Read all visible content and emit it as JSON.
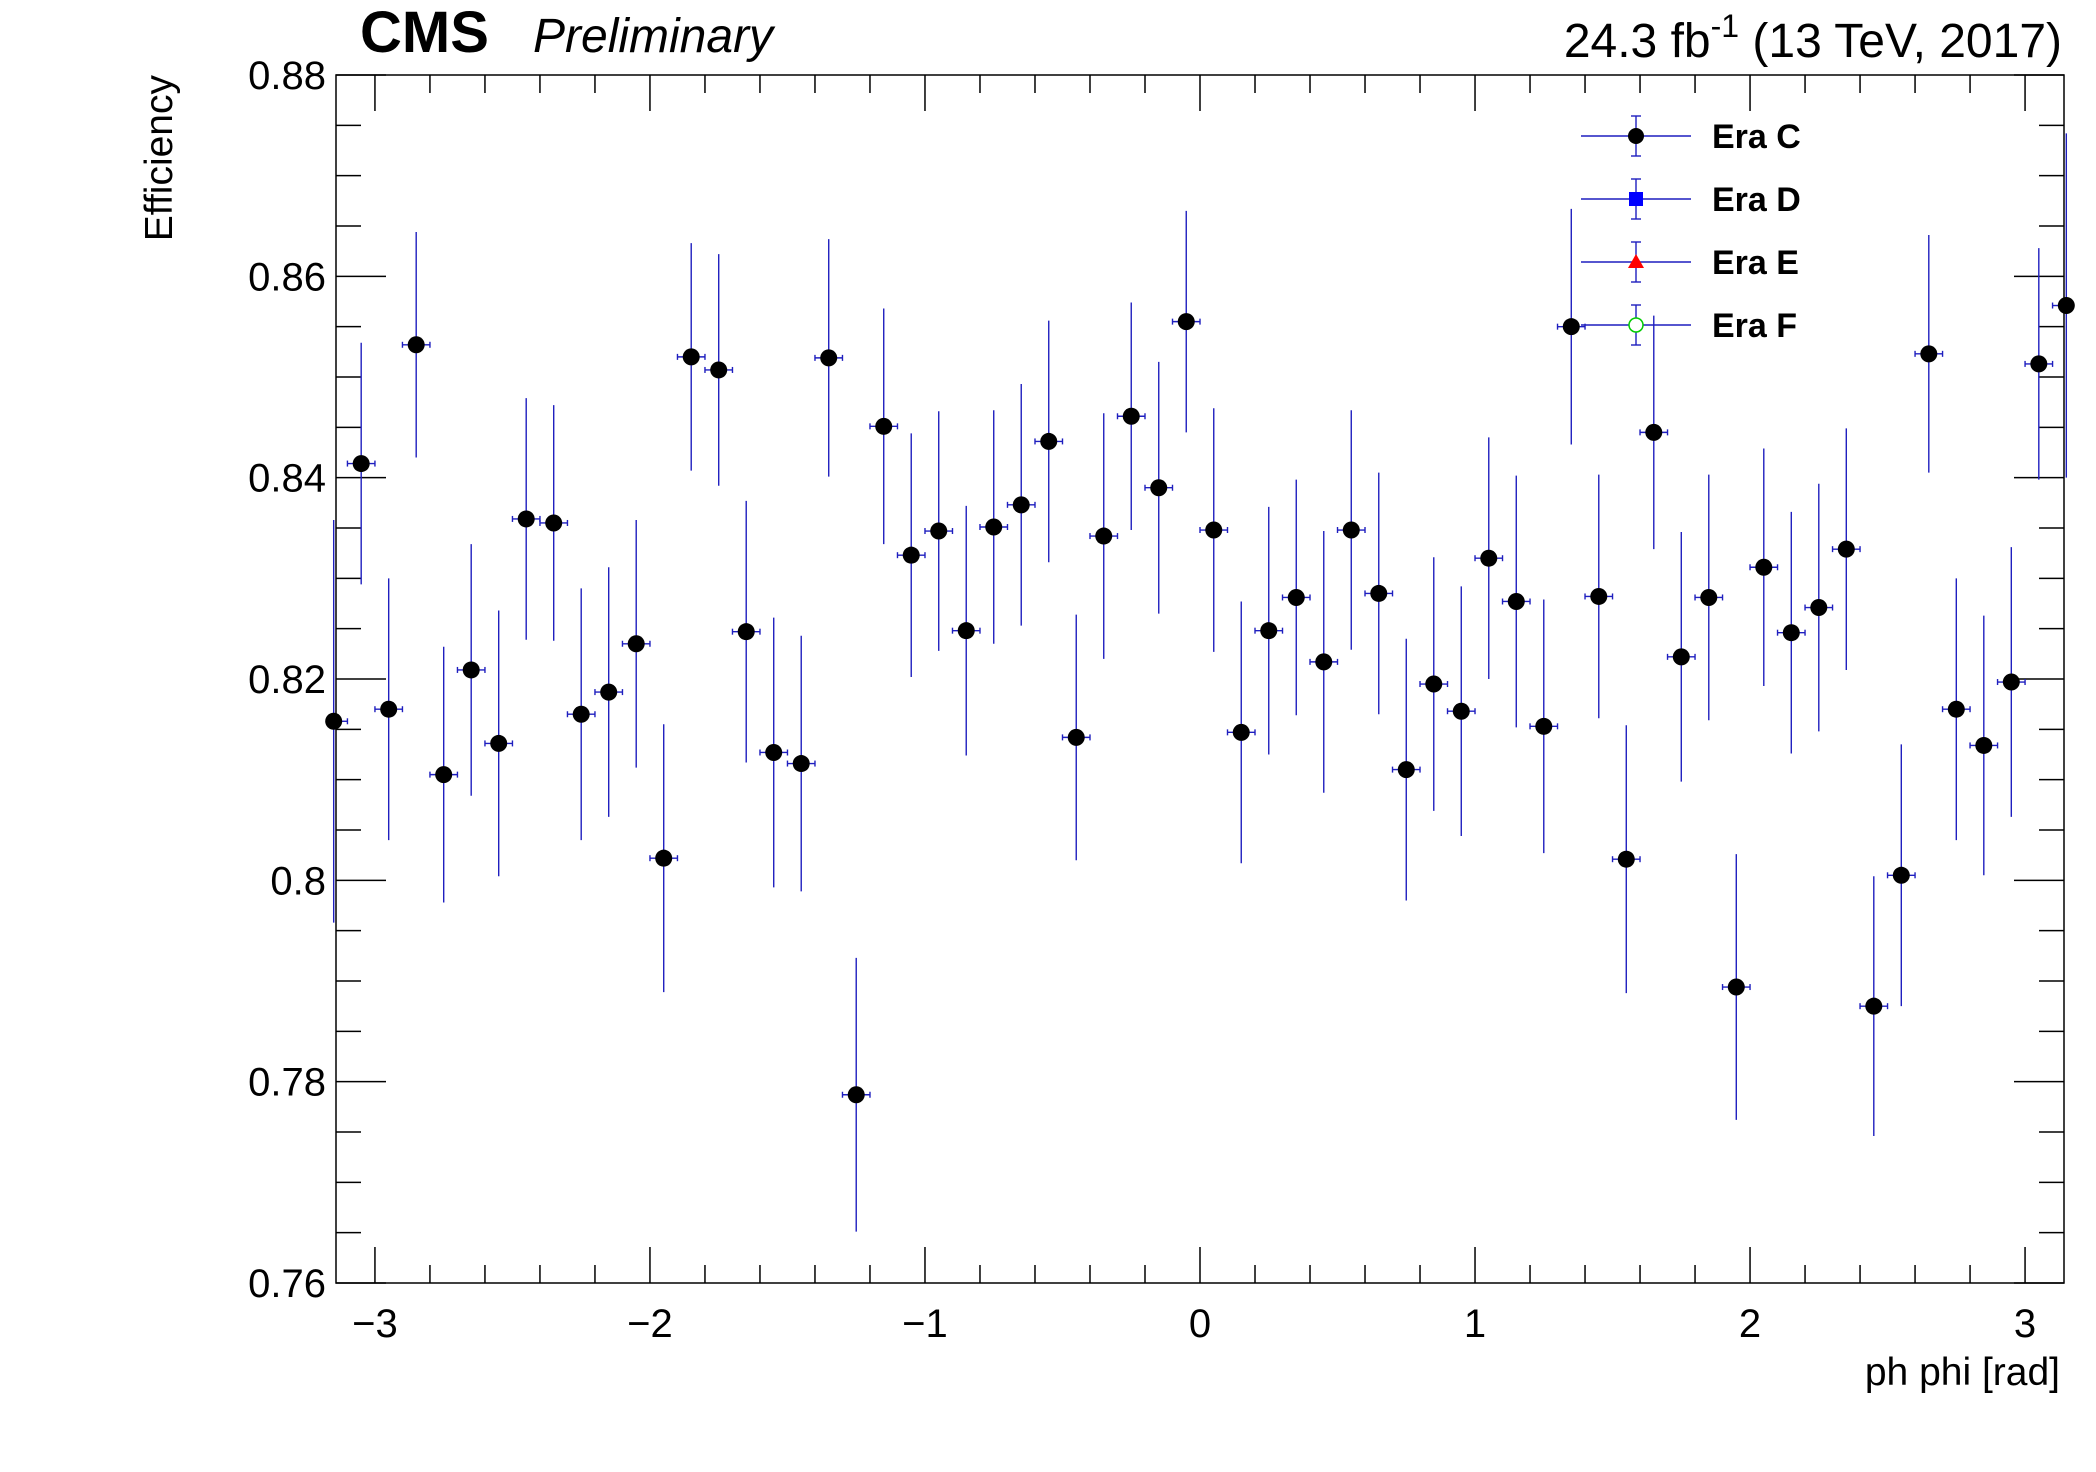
{
  "header": {
    "cms": "CMS",
    "preliminary": "Preliminary",
    "lumi_prefix": "24.3 fb",
    "lumi_sup": "-1",
    "lumi_suffix": " (13 TeV, 2017)"
  },
  "chart_data": {
    "type": "scatter",
    "xlabel": "ph phi [rad]",
    "ylabel": "Efficiency",
    "xlim": [
      -3.1416,
      3.1416
    ],
    "ylim": [
      0.76,
      0.88
    ],
    "xticks": [
      -3,
      -2,
      -1,
      0,
      1,
      2,
      3
    ],
    "xtick_labels": [
      "−3",
      "−2",
      "−1",
      "0",
      "1",
      "2",
      "3"
    ],
    "yticks": [
      0.76,
      0.78,
      0.8,
      0.82,
      0.84,
      0.86,
      0.88
    ],
    "ytick_labels": [
      "0.76",
      "0.78",
      "0.8",
      "0.82",
      "0.84",
      "0.86",
      "0.88"
    ],
    "legend_position": "top-right",
    "legend": [
      {
        "name": "Era C",
        "marker": "circle",
        "color": "#000000"
      },
      {
        "name": "Era D",
        "marker": "square",
        "color": "#0000ff"
      },
      {
        "name": "Era E",
        "marker": "triangle",
        "color": "#ff0000"
      },
      {
        "name": "Era F",
        "marker": "open-circle",
        "color": "#00cc00"
      }
    ],
    "bin_half_width": 0.05,
    "series": [
      {
        "name": "Era C",
        "points": [
          {
            "x": -3.15,
            "y": 0.8158,
            "err": 0.02
          },
          {
            "x": -3.05,
            "y": 0.8414,
            "err": 0.012
          },
          {
            "x": -2.95,
            "y": 0.817,
            "err": 0.013
          },
          {
            "x": -2.85,
            "y": 0.8532,
            "err": 0.0112
          },
          {
            "x": -2.75,
            "y": 0.8105,
            "err": 0.0127
          },
          {
            "x": -2.65,
            "y": 0.8209,
            "err": 0.0125
          },
          {
            "x": -2.55,
            "y": 0.8136,
            "err": 0.0132
          },
          {
            "x": -2.45,
            "y": 0.8359,
            "err": 0.012
          },
          {
            "x": -2.35,
            "y": 0.8355,
            "err": 0.0117
          },
          {
            "x": -2.25,
            "y": 0.8165,
            "err": 0.0125
          },
          {
            "x": -2.15,
            "y": 0.8187,
            "err": 0.0124
          },
          {
            "x": -2.05,
            "y": 0.8235,
            "err": 0.0123
          },
          {
            "x": -1.95,
            "y": 0.8022,
            "err": 0.0133
          },
          {
            "x": -1.85,
            "y": 0.852,
            "err": 0.0113
          },
          {
            "x": -1.75,
            "y": 0.8507,
            "err": 0.0115
          },
          {
            "x": -1.65,
            "y": 0.8247,
            "err": 0.013
          },
          {
            "x": -1.55,
            "y": 0.8127,
            "err": 0.0134
          },
          {
            "x": -1.45,
            "y": 0.8116,
            "err": 0.0127
          },
          {
            "x": -1.35,
            "y": 0.8519,
            "err": 0.0118
          },
          {
            "x": -1.25,
            "y": 0.7787,
            "err": 0.0136
          },
          {
            "x": -1.15,
            "y": 0.8451,
            "err": 0.0117
          },
          {
            "x": -1.05,
            "y": 0.8323,
            "err": 0.0121
          },
          {
            "x": -0.95,
            "y": 0.8347,
            "err": 0.0119
          },
          {
            "x": -0.85,
            "y": 0.8248,
            "err": 0.0124
          },
          {
            "x": -0.75,
            "y": 0.8351,
            "err": 0.0116
          },
          {
            "x": -0.65,
            "y": 0.8373,
            "err": 0.012
          },
          {
            "x": -0.55,
            "y": 0.8436,
            "err": 0.012
          },
          {
            "x": -0.45,
            "y": 0.8142,
            "err": 0.0122
          },
          {
            "x": -0.35,
            "y": 0.8342,
            "err": 0.0122
          },
          {
            "x": -0.25,
            "y": 0.8461,
            "err": 0.0113
          },
          {
            "x": -0.15,
            "y": 0.839,
            "err": 0.0125
          },
          {
            "x": -0.05,
            "y": 0.8555,
            "err": 0.011
          },
          {
            "x": 0.05,
            "y": 0.8348,
            "err": 0.0121
          },
          {
            "x": 0.15,
            "y": 0.8147,
            "err": 0.013
          },
          {
            "x": 0.25,
            "y": 0.8248,
            "err": 0.0123
          },
          {
            "x": 0.35,
            "y": 0.8281,
            "err": 0.0117
          },
          {
            "x": 0.45,
            "y": 0.8217,
            "err": 0.013
          },
          {
            "x": 0.55,
            "y": 0.8348,
            "err": 0.0119
          },
          {
            "x": 0.65,
            "y": 0.8285,
            "err": 0.012
          },
          {
            "x": 0.75,
            "y": 0.811,
            "err": 0.013
          },
          {
            "x": 0.85,
            "y": 0.8195,
            "err": 0.0126
          },
          {
            "x": 0.95,
            "y": 0.8168,
            "err": 0.0124
          },
          {
            "x": 1.05,
            "y": 0.832,
            "err": 0.012
          },
          {
            "x": 1.15,
            "y": 0.8277,
            "err": 0.0125
          },
          {
            "x": 1.25,
            "y": 0.8153,
            "err": 0.0126
          },
          {
            "x": 1.35,
            "y": 0.855,
            "err": 0.0117
          },
          {
            "x": 1.45,
            "y": 0.8282,
            "err": 0.0121
          },
          {
            "x": 1.55,
            "y": 0.8021,
            "err": 0.0133
          },
          {
            "x": 1.65,
            "y": 0.8445,
            "err": 0.0116
          },
          {
            "x": 1.75,
            "y": 0.8222,
            "err": 0.0124
          },
          {
            "x": 1.85,
            "y": 0.8281,
            "err": 0.0122
          },
          {
            "x": 1.95,
            "y": 0.7894,
            "err": 0.0132
          },
          {
            "x": 2.05,
            "y": 0.8311,
            "err": 0.0118
          },
          {
            "x": 2.15,
            "y": 0.8246,
            "err": 0.012
          },
          {
            "x": 2.25,
            "y": 0.8271,
            "err": 0.0123
          },
          {
            "x": 2.35,
            "y": 0.8329,
            "err": 0.012
          },
          {
            "x": 2.45,
            "y": 0.7875,
            "err": 0.0129
          },
          {
            "x": 2.55,
            "y": 0.8005,
            "err": 0.013
          },
          {
            "x": 2.65,
            "y": 0.8523,
            "err": 0.0118
          },
          {
            "x": 2.75,
            "y": 0.817,
            "err": 0.013
          },
          {
            "x": 2.85,
            "y": 0.8134,
            "err": 0.0129
          },
          {
            "x": 2.95,
            "y": 0.8197,
            "err": 0.0134
          },
          {
            "x": 3.05,
            "y": 0.8513,
            "err": 0.0115
          },
          {
            "x": 3.15,
            "y": 0.8571,
            "err": 0.0171
          }
        ]
      }
    ]
  }
}
